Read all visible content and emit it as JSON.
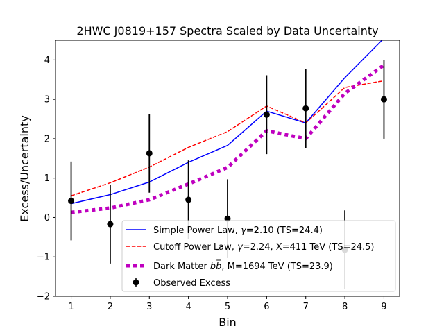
{
  "chart_data": {
    "type": "line",
    "title": "2HWC J0819+157 Spectra Scaled by Data Uncertainty",
    "xlabel": "Bin",
    "ylabel": "Excess/Uncertainty",
    "xlim": [
      0.6,
      9.4
    ],
    "ylim": [
      -2,
      4.5
    ],
    "xticks": [
      1,
      2,
      3,
      4,
      5,
      6,
      7,
      8,
      9
    ],
    "yticks": [
      -2,
      -1,
      0,
      1,
      2,
      3,
      4
    ],
    "ytick_labels": [
      "−2",
      "−1",
      "0",
      "1",
      "2",
      "3",
      "4"
    ],
    "grid": false,
    "legend_position": "lower-right",
    "x": [
      1,
      2,
      3,
      4,
      5,
      6,
      7,
      8,
      9
    ],
    "series": [
      {
        "name": "Simple Power Law, γ=2.10 (TS=24.4)",
        "legend_prefix": "Simple Power Law, ",
        "legend_gamma": "γ",
        "legend_suffix": "=2.10 (TS=24.4)",
        "style": "solid",
        "color": "#0000ff",
        "values": [
          0.35,
          0.58,
          0.9,
          1.4,
          1.83,
          2.7,
          2.4,
          3.55,
          4.55
        ]
      },
      {
        "name": "Cutoff Power Law, γ=2.24, X=411 TeV (TS=24.5)",
        "legend_prefix": "Cutoff Power Law, ",
        "legend_gamma": "γ",
        "legend_suffix": "=2.24, X=411 TeV (TS=24.5)",
        "style": "dashed",
        "color": "#ff0000",
        "values": [
          0.55,
          0.88,
          1.28,
          1.78,
          2.18,
          2.83,
          2.4,
          3.3,
          3.47
        ]
      },
      {
        "name": "Dark Matter bb̄, M=1694 TeV (TS=23.9)",
        "legend_prefix": "Dark Matter ",
        "legend_bb": "bb",
        "legend_suffix": ", M=1694 TeV (TS=23.9)",
        "style": "dotted",
        "color": "#bf00bf",
        "values": [
          0.13,
          0.24,
          0.45,
          0.85,
          1.27,
          2.2,
          2.0,
          3.15,
          3.87
        ]
      }
    ],
    "observed": {
      "name": "Observed Excess",
      "color": "#000000",
      "values": [
        0.42,
        -0.17,
        1.63,
        0.45,
        -0.03,
        2.61,
        2.77,
        -0.82,
        3.0
      ],
      "errors": [
        1.0,
        1.0,
        1.0,
        1.0,
        1.0,
        1.0,
        1.0,
        1.0,
        1.0
      ]
    }
  }
}
